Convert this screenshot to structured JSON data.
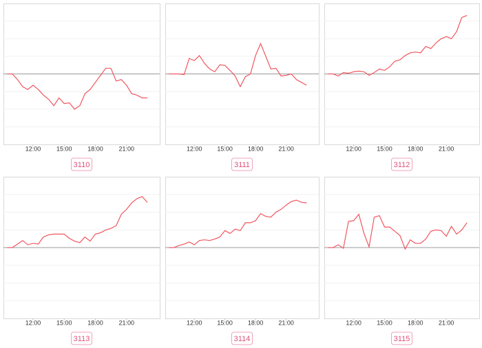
{
  "chart_data": [
    {
      "type": "line",
      "label": "3110",
      "color": "#f0555f",
      "reference_line": 0,
      "ylim": [
        -10,
        10
      ],
      "xlim": [
        9.15,
        24.2
      ],
      "xticks": [
        {
          "value": 12,
          "label": "12:00"
        },
        {
          "value": 15,
          "label": "15:00"
        },
        {
          "value": 18,
          "label": "18:00"
        },
        {
          "value": 21,
          "label": "21:00"
        }
      ],
      "x": [
        9.5,
        10,
        10.5,
        11,
        11.5,
        12,
        12.5,
        13,
        13.5,
        14,
        14.5,
        15,
        15.5,
        16,
        16.5,
        17,
        17.5,
        18,
        18.5,
        19,
        19.5,
        20,
        20.5,
        21,
        21.5,
        22,
        22.5,
        23
      ],
      "values": [
        0,
        0,
        -0.8,
        -1.8,
        -2.2,
        -1.6,
        -2.2,
        -3,
        -3.6,
        -4.5,
        -3.4,
        -4.2,
        -4.1,
        -5,
        -4.5,
        -2.8,
        -2.2,
        -1.2,
        -0.2,
        0.8,
        0.8,
        -1,
        -0.8,
        -1.6,
        -2.8,
        -3,
        -3.4,
        -3.4
      ]
    },
    {
      "type": "line",
      "label": "3111",
      "color": "#f0555f",
      "reference_line": 0,
      "ylim": [
        -10,
        10
      ],
      "xlim": [
        9.15,
        24.2
      ],
      "xticks": [
        {
          "value": 12,
          "label": "12:00"
        },
        {
          "value": 15,
          "label": "15:00"
        },
        {
          "value": 18,
          "label": "18:00"
        },
        {
          "value": 21,
          "label": "21:00"
        }
      ],
      "x": [
        9.5,
        10,
        10.5,
        11,
        11.5,
        12,
        12.5,
        13,
        13.5,
        14,
        14.5,
        15,
        15.5,
        16,
        16.5,
        17,
        17.5,
        18,
        18.5,
        19,
        19.5,
        20,
        20.5,
        21,
        21.5,
        22,
        22.5,
        23
      ],
      "values": [
        0,
        0,
        0,
        -0.1,
        2.2,
        1.9,
        2.6,
        1.5,
        0.7,
        0.3,
        1.3,
        1.2,
        0.5,
        -0.3,
        -1.8,
        -0.4,
        0,
        2.6,
        4.3,
        2.5,
        0.7,
        0.8,
        -0.3,
        -0.2,
        0,
        -0.8,
        -1.2,
        -1.6
      ]
    },
    {
      "type": "line",
      "label": "3112",
      "color": "#f0555f",
      "reference_line": 0,
      "ylim": [
        -10,
        10
      ],
      "xlim": [
        9.15,
        24.2
      ],
      "xticks": [
        {
          "value": 12,
          "label": "12:00"
        },
        {
          "value": 15,
          "label": "15:00"
        },
        {
          "value": 18,
          "label": "18:00"
        },
        {
          "value": 21,
          "label": "21:00"
        }
      ],
      "x": [
        9.5,
        10,
        10.5,
        11,
        11.5,
        12,
        12.5,
        13,
        13.5,
        14,
        14.5,
        15,
        15.5,
        16,
        16.5,
        17,
        17.5,
        18,
        18.5,
        19,
        19.5,
        20,
        20.5,
        21,
        21.5,
        22,
        22.5,
        23
      ],
      "values": [
        0,
        0,
        -0.3,
        0.2,
        0.1,
        0.3,
        0.4,
        0.3,
        -0.2,
        0.2,
        0.7,
        0.5,
        1,
        1.8,
        2,
        2.6,
        3,
        3.1,
        3,
        3.9,
        3.6,
        4.4,
        5,
        5.3,
        5,
        6,
        8,
        8.3
      ]
    },
    {
      "type": "line",
      "label": "3113",
      "color": "#f0555f",
      "reference_line": 0,
      "ylim": [
        -10,
        10
      ],
      "xlim": [
        9.15,
        24.2
      ],
      "xticks": [
        {
          "value": 12,
          "label": "12:00"
        },
        {
          "value": 15,
          "label": "15:00"
        },
        {
          "value": 18,
          "label": "18:00"
        },
        {
          "value": 21,
          "label": "21:00"
        }
      ],
      "x": [
        9.5,
        10,
        10.5,
        11,
        11.5,
        12,
        12.5,
        13,
        13.5,
        14,
        14.5,
        15,
        15.5,
        16,
        16.5,
        17,
        17.5,
        18,
        18.5,
        19,
        19.5,
        20,
        20.5,
        21,
        21.5,
        22,
        22.5,
        23
      ],
      "values": [
        0,
        0,
        0.5,
        1,
        0.4,
        0.6,
        0.5,
        1.5,
        1.8,
        1.9,
        1.9,
        1.9,
        1.3,
        0.9,
        0.7,
        1.5,
        0.9,
        1.9,
        2.1,
        2.5,
        2.7,
        3.1,
        4.7,
        5.4,
        6.3,
        6.9,
        7.2,
        6.4
      ]
    },
    {
      "type": "line",
      "label": "3114",
      "color": "#f0555f",
      "reference_line": 0,
      "ylim": [
        -10,
        10
      ],
      "xlim": [
        9.15,
        24.2
      ],
      "xticks": [
        {
          "value": 12,
          "label": "12:00"
        },
        {
          "value": 15,
          "label": "15:00"
        },
        {
          "value": 18,
          "label": "18:00"
        },
        {
          "value": 21,
          "label": "21:00"
        }
      ],
      "x": [
        9.5,
        10,
        10.5,
        11,
        11.5,
        12,
        12.5,
        13,
        13.5,
        14,
        14.5,
        15,
        15.5,
        16,
        16.5,
        17,
        17.5,
        18,
        18.5,
        19,
        19.5,
        20,
        20.5,
        21,
        21.5,
        22,
        22.5,
        23
      ],
      "values": [
        0,
        0,
        0.3,
        0.5,
        0.8,
        0.4,
        1,
        1.1,
        1,
        1.2,
        1.5,
        2.4,
        2,
        2.6,
        2.4,
        3.5,
        3.5,
        3.8,
        4.8,
        4.4,
        4.3,
        5,
        5.4,
        6,
        6.5,
        6.7,
        6.4,
        6.3
      ]
    },
    {
      "type": "line",
      "label": "3115",
      "color": "#f0555f",
      "reference_line": 0,
      "ylim": [
        -10,
        10
      ],
      "xlim": [
        9.15,
        24.2
      ],
      "xticks": [
        {
          "value": 12,
          "label": "12:00"
        },
        {
          "value": 15,
          "label": "15:00"
        },
        {
          "value": 18,
          "label": "18:00"
        },
        {
          "value": 21,
          "label": "21:00"
        }
      ],
      "x": [
        9.5,
        10,
        10.5,
        11,
        11.5,
        12,
        12.5,
        13,
        13.5,
        14,
        14.5,
        15,
        15.5,
        16,
        16.5,
        17,
        17.5,
        18,
        18.5,
        19,
        19.5,
        20,
        20.5,
        21,
        21.5,
        22,
        22.5,
        23
      ],
      "values": [
        0,
        0,
        0.4,
        -0.1,
        3.7,
        3.8,
        4.7,
        2,
        0.1,
        4.3,
        4.5,
        2.9,
        2.9,
        2.3,
        1.7,
        -0.2,
        1.1,
        0.6,
        0.6,
        1.2,
        2.3,
        2.5,
        2.4,
        1.6,
        3,
        1.9,
        2.5,
        3.5
      ]
    }
  ]
}
